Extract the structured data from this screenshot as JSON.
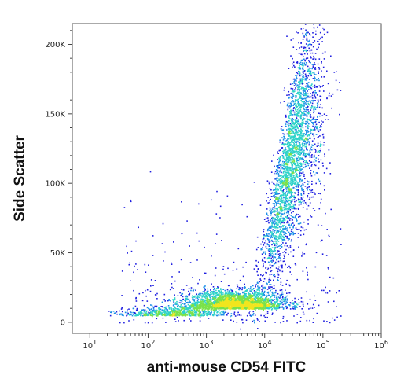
{
  "chart_data": {
    "type": "scatter",
    "style": "density-dot-plot",
    "xlabel": "anti-mouse CD54 FITC",
    "ylabel": "Side Scatter",
    "x_scale": "log",
    "xlim": [
      5,
      1000000
    ],
    "ylim": [
      -8000,
      215000
    ],
    "x_ticks": [
      {
        "value": 10,
        "base": "10",
        "exp": "1"
      },
      {
        "value": 100,
        "base": "10",
        "exp": "2"
      },
      {
        "value": 1000,
        "base": "10",
        "exp": "3"
      },
      {
        "value": 10000,
        "base": "10",
        "exp": "4"
      },
      {
        "value": 100000,
        "base": "10",
        "exp": "5"
      },
      {
        "value": 1000000,
        "base": "10",
        "exp": "6"
      }
    ],
    "y_ticks": [
      {
        "value": 0,
        "label": "0"
      },
      {
        "value": 50000,
        "label": "50K"
      },
      {
        "value": 100000,
        "label": "100K"
      },
      {
        "value": 150000,
        "label": "150K"
      },
      {
        "value": 200000,
        "label": "200K"
      }
    ],
    "density_colors": [
      "#1f1fe0",
      "#1c8fe8",
      "#2fd3c9",
      "#7be24a",
      "#f2e51e",
      "#f28a16",
      "#d92a14"
    ],
    "populations": [
      {
        "name": "",
        "x_center": 300,
        "y_center": 5000,
        "x_spread_decades": 0.45,
        "y_spread": 3000
      },
      {
        "name": "",
        "x_center": 3000,
        "y_center": 10000,
        "x_spread_decades": 0.45,
        "y_spread": 6000
      },
      {
        "name": "",
        "x_center": 30000,
        "y_center": 70000,
        "x_spread_decades": 0.25,
        "y_spread": 40000
      }
    ],
    "grid": false,
    "legend": "none"
  }
}
